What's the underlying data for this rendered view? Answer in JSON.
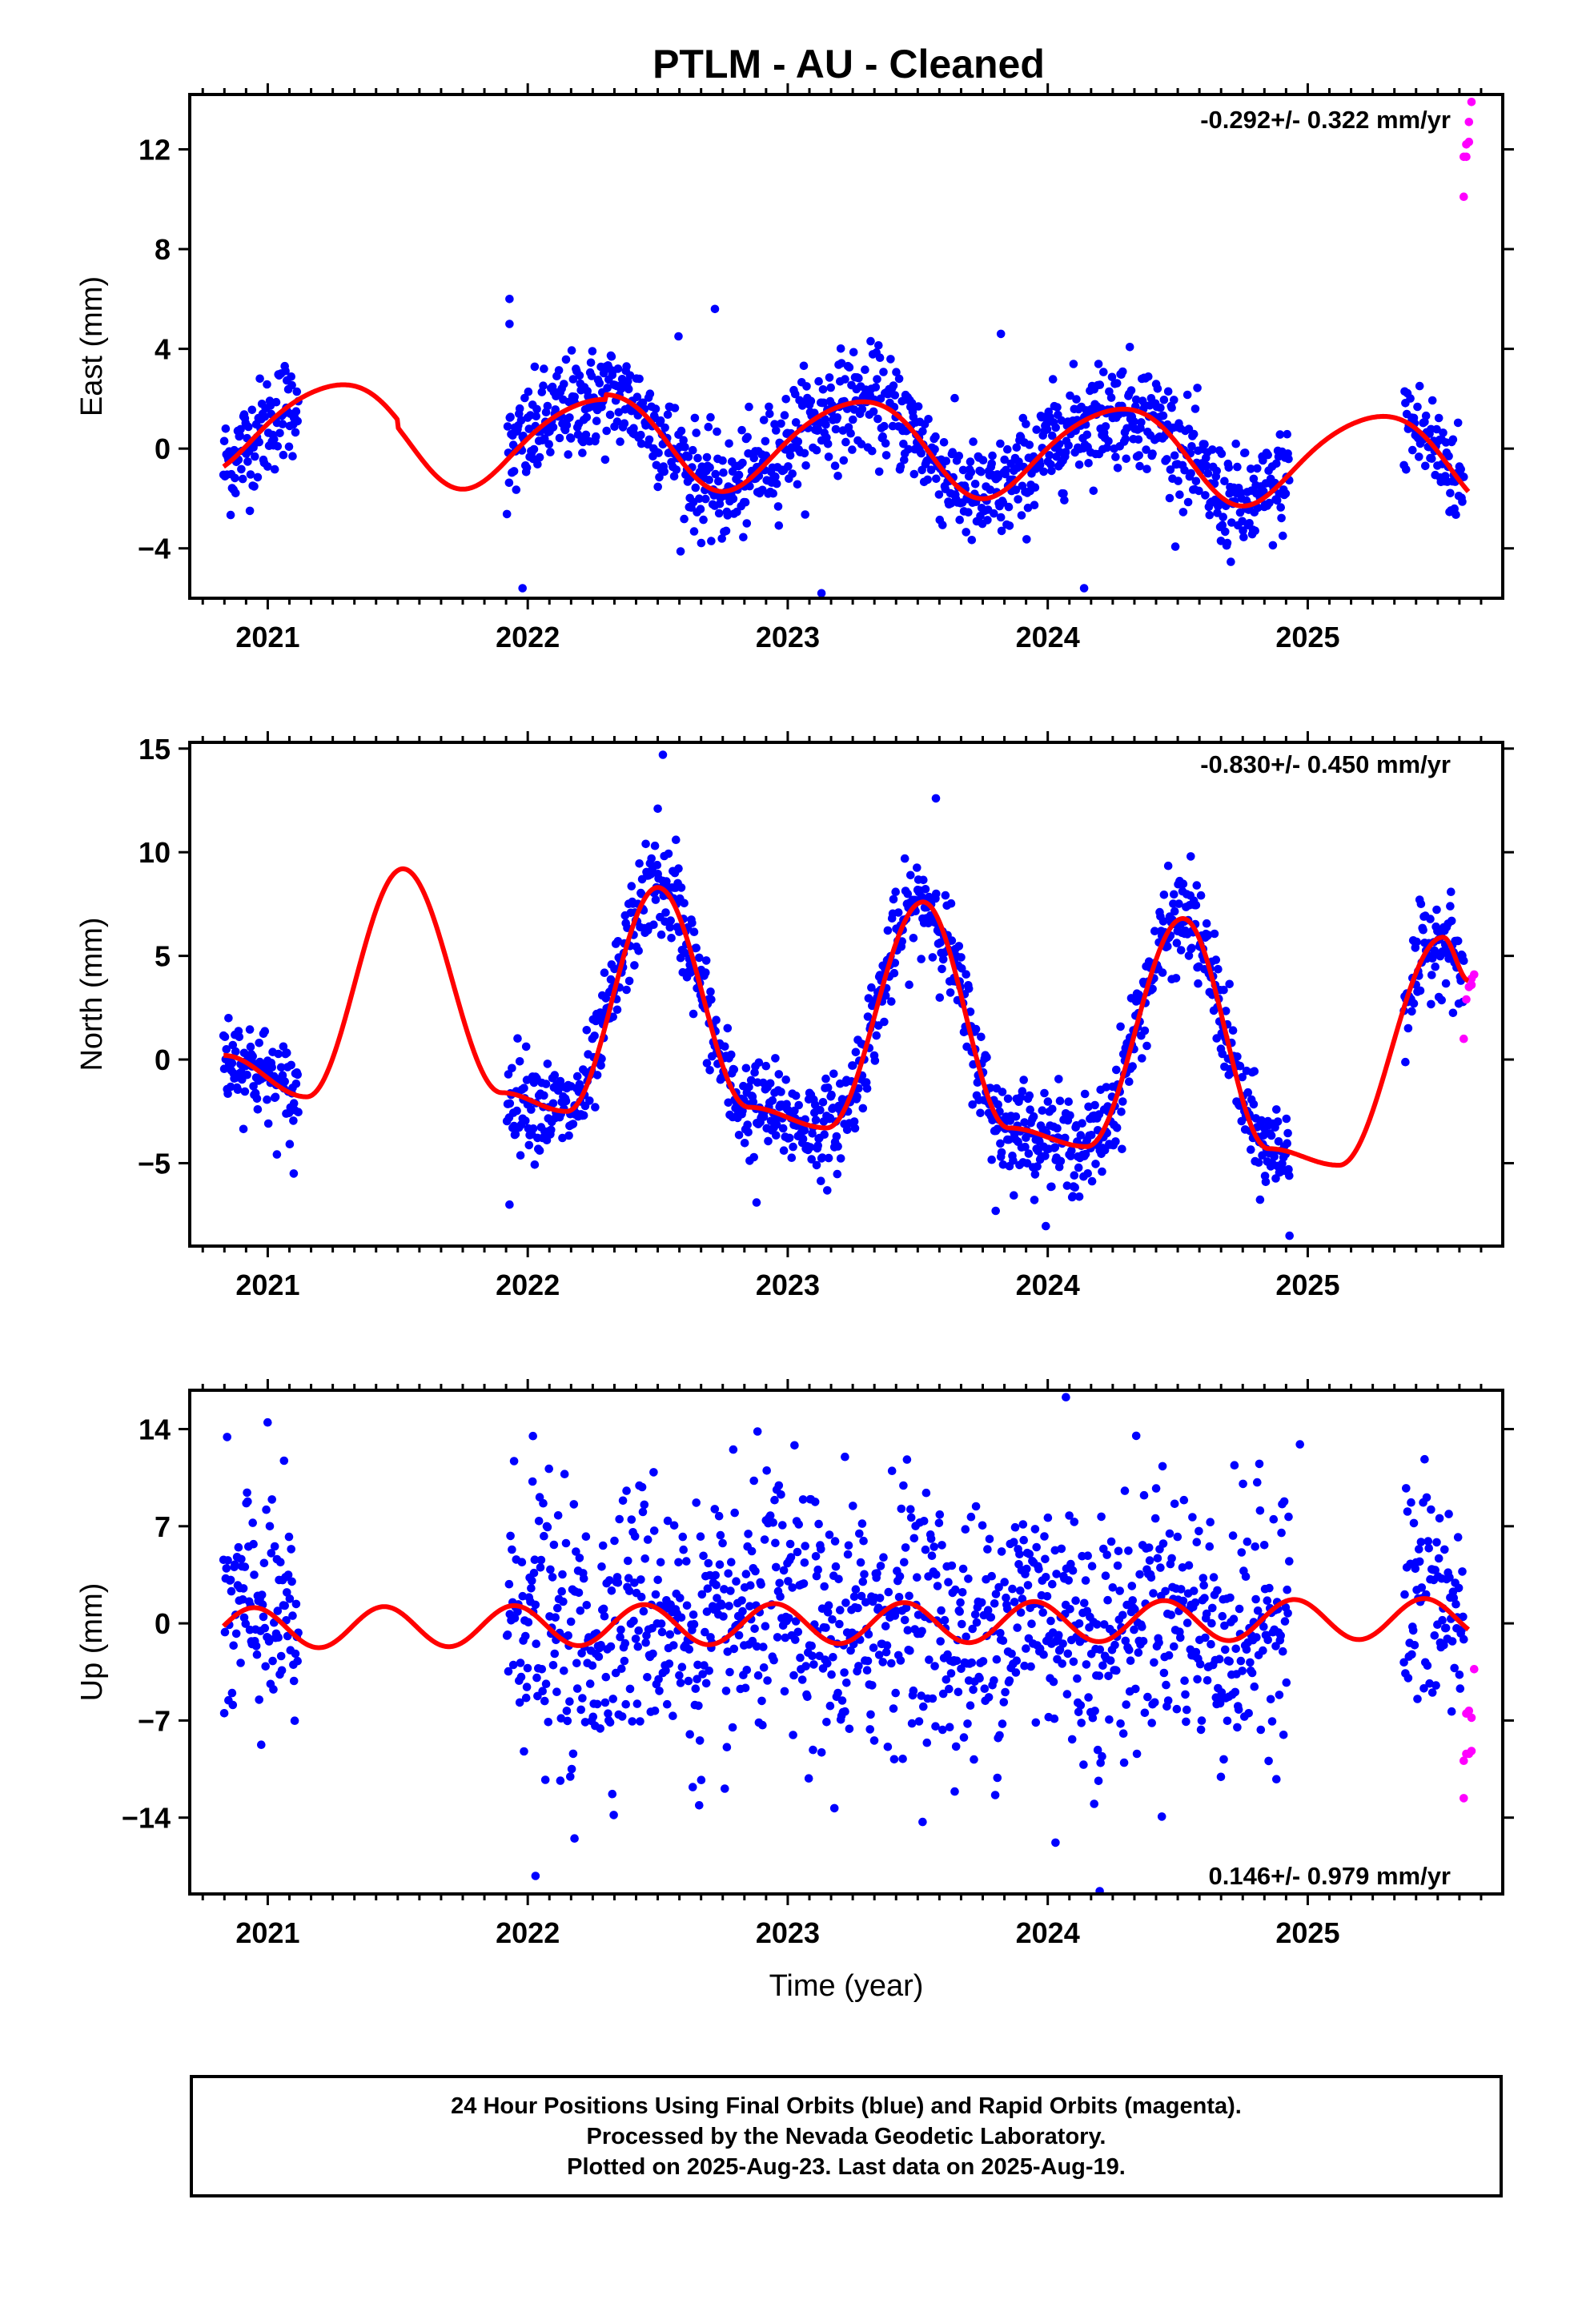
{
  "title": "PTLM  - AU - Cleaned",
  "xlabel": "Time (year)",
  "footer": {
    "line1": "24 Hour Positions Using Final Orbits (blue) and Rapid Orbits (magenta).",
    "line2": "Processed by the Nevada Geodetic Laboratory.",
    "line3": "Plotted on 2025-Aug-23. Last data on 2025-Aug-19."
  },
  "colors": {
    "final": "#0000ff",
    "rapid": "#ff00ff",
    "model": "#ff0000",
    "axes": "#000000"
  },
  "chart_data": [
    {
      "type": "scatter",
      "id": "east",
      "ylabel": "East (mm)",
      "rate_text": "-0.292+/- 0.322 mm/yr",
      "xlim": [
        2020.7,
        2025.75
      ],
      "ylim": [
        -6,
        14.2
      ],
      "xticks": [
        2021,
        2022,
        2023,
        2024,
        2025
      ],
      "yticks": [
        -4,
        0,
        4,
        8,
        12
      ],
      "yticklabels": [
        "−4",
        "0",
        "4",
        "8",
        "12"
      ],
      "grid": false,
      "segments": [
        [
          2020.83,
          2021.12
        ],
        [
          2021.92,
          2024.93
        ],
        [
          2025.37,
          2025.6
        ]
      ],
      "model": {
        "offset": 0.3,
        "trend": -0.292,
        "t0": 2023.2,
        "annual_sin": 1.85,
        "annual_cos": -0.15,
        "semi_sin": -0.1,
        "semi_cos": 0.2,
        "offsets": [
          [
            2021.5,
            -0.3
          ],
          [
            2022.3,
            0.2
          ]
        ]
      },
      "noise_sd": 1.05,
      "spikes": [
        [
          2021.93,
          6.0
        ],
        [
          2021.93,
          5.0
        ],
        [
          2022.72,
          5.6
        ],
        [
          2023.13,
          -5.8
        ],
        [
          2024.14,
          -5.6
        ],
        [
          2021.98,
          -5.6
        ],
        [
          2023.82,
          4.6
        ],
        [
          2022.58,
          4.5
        ]
      ],
      "rapid": {
        "x": [
          2025.6,
          2025.6,
          2025.61,
          2025.61,
          2025.62,
          2025.62,
          2025.63
        ],
        "y": [
          10.1,
          11.7,
          11.7,
          12.2,
          12.3,
          13.1,
          13.9
        ]
      }
    },
    {
      "type": "scatter",
      "id": "north",
      "ylabel": "North (mm)",
      "rate_text": "-0.830+/- 0.450 mm/yr",
      "xlim": [
        2020.7,
        2025.75
      ],
      "ylim": [
        -9,
        15.3
      ],
      "xticks": [
        2021,
        2022,
        2023,
        2024,
        2025
      ],
      "yticks": [
        -5,
        0,
        5,
        10,
        15
      ],
      "yticklabels": [
        "−5",
        "0",
        "5",
        "10",
        "15"
      ],
      "grid": false,
      "segments": [
        [
          2020.83,
          2021.12
        ],
        [
          2021.92,
          2024.93
        ],
        [
          2025.37,
          2025.6
        ]
      ],
      "model": {
        "peaks": [
          [
            2020.83,
            0.2
          ],
          [
            2021.15,
            -1.8
          ],
          [
            2021.52,
            9.2
          ],
          [
            2021.9,
            -1.6
          ],
          [
            2022.15,
            -2.5
          ],
          [
            2022.5,
            8.3
          ],
          [
            2022.85,
            -2.3
          ],
          [
            2023.15,
            -3.3
          ],
          [
            2023.52,
            7.6
          ],
          [
            2023.85,
            -3.3
          ],
          [
            2024.15,
            -4.2
          ],
          [
            2024.52,
            6.8
          ],
          [
            2024.85,
            -4.3
          ],
          [
            2025.12,
            -5.1
          ],
          [
            2025.52,
            5.9
          ],
          [
            2025.62,
            3.8
          ]
        ]
      },
      "noise_sd": 1.15,
      "spikes": [
        [
          2022.52,
          14.7
        ],
        [
          2022.5,
          12.1
        ],
        [
          2023.57,
          12.6
        ],
        [
          2024.93,
          -8.5
        ],
        [
          2021.93,
          -7.0
        ],
        [
          2023.8,
          -7.3
        ],
        [
          2021.1,
          -5.5
        ],
        [
          2022.88,
          -6.9
        ],
        [
          2024.55,
          9.8
        ],
        [
          2022.57,
          10.6
        ]
      ],
      "rapid": {
        "x": [
          2025.6,
          2025.61,
          2025.62,
          2025.63,
          2025.63,
          2025.64
        ],
        "y": [
          1.0,
          2.9,
          3.5,
          3.6,
          3.9,
          4.1
        ]
      }
    },
    {
      "type": "scatter",
      "id": "up",
      "ylabel": "Up (mm)",
      "rate_text": "0.146+/- 0.979 mm/yr",
      "xlim": [
        2020.7,
        2025.75
      ],
      "ylim": [
        -19.5,
        16.8
      ],
      "xticks": [
        2021,
        2022,
        2023,
        2024,
        2025
      ],
      "yticks": [
        -14,
        -7,
        0,
        7,
        14
      ],
      "yticklabels": [
        "−14",
        "−7",
        "0",
        "7",
        "14"
      ],
      "grid": false,
      "segments": [
        [
          2020.83,
          2021.12
        ],
        [
          2021.92,
          2024.93
        ],
        [
          2025.37,
          2025.6
        ]
      ],
      "model": {
        "offset": 0.0,
        "trend": 0.146,
        "t0": 2023.2,
        "annual_sin": 0.0,
        "annual_cos": 0.0,
        "semi_sin": -0.9,
        "semi_cos": 1.15,
        "offsets": []
      },
      "noise_sd": 4.6,
      "spikes": [
        [
          2024.07,
          16.3
        ],
        [
          2022.03,
          -18.2
        ],
        [
          2024.2,
          -19.3
        ],
        [
          2022.02,
          13.5
        ],
        [
          2024.97,
          12.9
        ],
        [
          2023.22,
          12.0
        ],
        [
          2022.18,
          -15.5
        ],
        [
          2024.03,
          -15.8
        ]
      ],
      "rapid": {
        "x": [
          2025.6,
          2025.6,
          2025.61,
          2025.61,
          2025.62,
          2025.62,
          2025.63,
          2025.63,
          2025.64
        ],
        "y": [
          -12.6,
          -9.9,
          -9.4,
          -6.5,
          -9.4,
          -6.3,
          -9.2,
          -6.8,
          -3.3
        ]
      }
    }
  ]
}
